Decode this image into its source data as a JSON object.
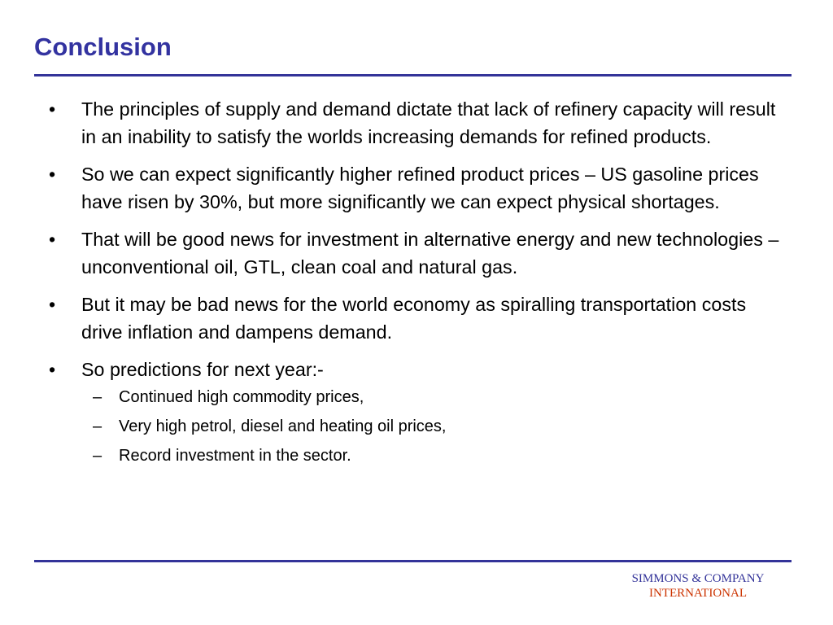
{
  "slide": {
    "title": "Conclusion",
    "bullets": [
      {
        "mark": "•",
        "text": "The principles of supply and demand dictate that lack of refinery capacity will result in an inability to satisfy the worlds increasing demands for refined products."
      },
      {
        "mark": "•",
        "text": "So we can expect significantly higher refined product prices – US gasoline prices have risen by 30%, but more significantly we can expect physical shortages."
      },
      {
        "mark": "•",
        "text": "That will be good news for investment in alternative energy and new technologies – unconventional oil, GTL, clean coal and natural gas."
      },
      {
        "mark": "•",
        "text": "But it may be bad news for the world economy as spiralling transportation costs drive inflation and dampens demand."
      },
      {
        "mark": "•",
        "text": "So predictions for next year:-",
        "sub_items": [
          {
            "mark": "–",
            "text": "Continued high commodity prices,"
          },
          {
            "mark": "–",
            "text": "Very high petrol, diesel and heating oil prices,"
          },
          {
            "mark": "–",
            "text": "Record investment in the sector."
          }
        ]
      }
    ]
  },
  "footer": {
    "logo_line1": "SIMMONS & COMPANY",
    "logo_line2": "INTERNATIONAL"
  },
  "colors": {
    "title": "#3333a0",
    "rule": "#333399",
    "logo_primary": "#333399",
    "logo_secondary": "#cc3300"
  }
}
